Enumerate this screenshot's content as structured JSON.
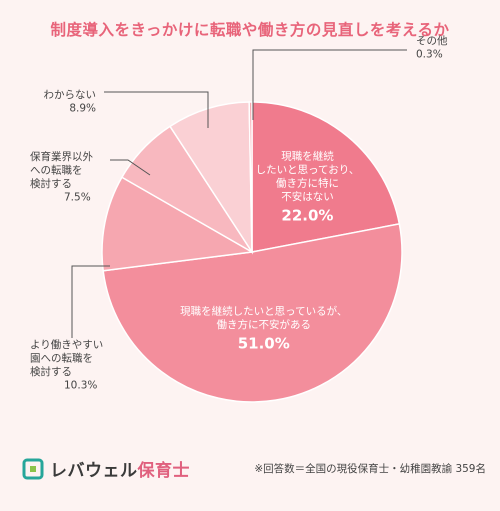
{
  "chart_data": {
    "type": "pie",
    "title": "制度導入をきっかけに転職や働き方の見直しを考えるか",
    "slices": [
      {
        "label_lines": [
          "現職を継続",
          "したいと思っており、",
          "働き方に特に",
          "不安はない"
        ],
        "value": 22.0,
        "value_text": "22.0%",
        "color": "#f07b8d",
        "label_position": "inside"
      },
      {
        "label_lines": [
          "現職を継続したいと思っているが、",
          "働き方に不安がある"
        ],
        "value": 51.0,
        "value_text": "51.0%",
        "color": "#f38e9c",
        "label_position": "inside"
      },
      {
        "label_lines": [
          "より働きやすい",
          "園への転職を",
          "検討する"
        ],
        "value": 10.3,
        "value_text": "10.3%",
        "color": "#f6a7b0",
        "label_position": "outside-left"
      },
      {
        "label_lines": [
          "保育業界以外",
          "への転職を",
          "検討する"
        ],
        "value": 7.5,
        "value_text": "7.5%",
        "color": "#f8b8bf",
        "label_position": "outside-left"
      },
      {
        "label_lines": [
          "わからない"
        ],
        "value": 8.9,
        "value_text": "8.9%",
        "color": "#fad0d4",
        "label_position": "outside-left"
      },
      {
        "label_lines": [
          "その他"
        ],
        "value": 0.3,
        "value_text": "0.3%",
        "color": "#f6a7b0",
        "label_position": "outside-right"
      }
    ]
  },
  "footer": {
    "brand_main": "レバウェル",
    "brand_sub": "保育士",
    "note": "※回答数＝全国の現役保育士・幼稚園教諭 359名"
  },
  "colors": {
    "title": "#e8647a",
    "background": "#fdf3f2",
    "leader_line": "#555555"
  }
}
